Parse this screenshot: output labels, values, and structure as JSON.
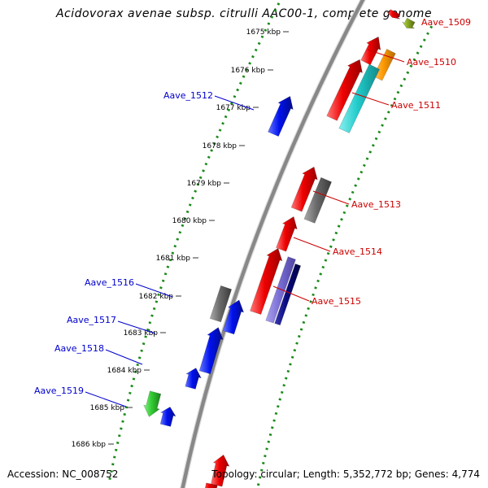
{
  "title": "Acidovorax avenae subsp. citrulli AAC00-1, complete genome",
  "accession": "Accession: NC_008752",
  "topology": "Topology: circular; Length: 5,352,772 bp; Genes: 4,774",
  "kbp_ticks": [
    "1675 kbp",
    "1676 kbp",
    "1677 kbp",
    "1678 kbp",
    "1679 kbp",
    "1680 kbp",
    "1681 kbp",
    "1682 kbp",
    "1683 kbp",
    "1684 kbp",
    "1685 kbp",
    "1686 kbp"
  ],
  "colors": {
    "forward_label": "#0000cc",
    "reverse_label": "#cc0000",
    "backbone": "#888888",
    "track_dots": "#1a8a1a",
    "gene_red": "#ee0000",
    "gene_blue": "#0011ee",
    "gene_gray": "#6a6a6a",
    "gene_orange": "#ff9900",
    "gene_cyan": "#22cccc",
    "gene_olive": "#88aa22",
    "gene_lavender": "#7a6ed6",
    "gene_navy": "#0a0a80",
    "gene_green": "#33cc33"
  },
  "gene_labels": [
    {
      "name": "Aave_1509",
      "strand": "reverse"
    },
    {
      "name": "Aave_1510",
      "strand": "reverse"
    },
    {
      "name": "Aave_1511",
      "strand": "reverse"
    },
    {
      "name": "Aave_1512",
      "strand": "forward"
    },
    {
      "name": "Aave_1513",
      "strand": "reverse"
    },
    {
      "name": "Aave_1514",
      "strand": "reverse"
    },
    {
      "name": "Aave_1515",
      "strand": "reverse"
    },
    {
      "name": "Aave_1516",
      "strand": "forward"
    },
    {
      "name": "Aave_1517",
      "strand": "forward"
    },
    {
      "name": "Aave_1518",
      "strand": "forward"
    },
    {
      "name": "Aave_1519",
      "strand": "forward"
    }
  ]
}
